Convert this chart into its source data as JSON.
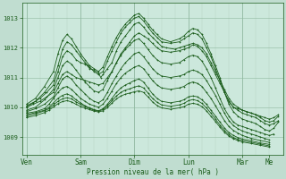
{
  "title": "",
  "xlabel": "Pression niveau de la mer( hPa )",
  "bg_color": "#c0ddd0",
  "plot_bg_color": "#cce8dc",
  "line_color": "#1a5c1a",
  "grid_color_major": "#90b8a0",
  "grid_color_minor": "#b0d0bc",
  "yticks": [
    1009,
    1010,
    1011,
    1012,
    1013
  ],
  "ylim": [
    1008.4,
    1013.5
  ],
  "xtick_labels": [
    "Ven",
    "Sam",
    "Dim",
    "Lun",
    "Mar",
    "Me"
  ],
  "xtick_positions": [
    0,
    24,
    48,
    72,
    96,
    108
  ],
  "xlim": [
    -2,
    114
  ],
  "figsize": [
    3.2,
    2.0
  ],
  "dpi": 100,
  "series": [
    [
      0,
      1010.0,
      3,
      1010.15,
      6,
      1010.3,
      9,
      1010.5,
      12,
      1010.75,
      14,
      1011.2,
      16,
      1011.7,
      18,
      1011.9,
      20,
      1011.8,
      22,
      1011.6,
      24,
      1011.5,
      26,
      1011.45,
      27,
      1011.4,
      28,
      1011.3,
      30,
      1011.25,
      32,
      1011.15,
      33,
      1011.0,
      34,
      1011.1,
      36,
      1011.3,
      38,
      1011.5,
      40,
      1011.9,
      42,
      1012.2,
      44,
      1012.4,
      46,
      1012.6,
      48,
      1012.8,
      50,
      1012.85,
      52,
      1012.7,
      54,
      1012.5,
      56,
      1012.35,
      58,
      1012.2,
      60,
      1012.05,
      62,
      1012.0,
      66,
      1011.95,
      68,
      1012.0,
      70,
      1012.05,
      72,
      1012.1,
      74,
      1012.15,
      76,
      1012.1,
      78,
      1012.0,
      80,
      1011.8,
      82,
      1011.5,
      84,
      1011.2,
      86,
      1010.9,
      88,
      1010.6,
      90,
      1010.3,
      92,
      1010.1,
      94,
      1010.0,
      96,
      1009.9,
      98,
      1009.85,
      100,
      1009.8,
      102,
      1009.75,
      104,
      1009.7,
      106,
      1009.65,
      108,
      1009.6,
      110,
      1009.65,
      112,
      1009.75
    ],
    [
      0,
      1010.0,
      3,
      1010.1,
      6,
      1010.2,
      9,
      1010.35,
      12,
      1010.5,
      14,
      1010.8,
      16,
      1011.1,
      18,
      1011.2,
      20,
      1011.1,
      22,
      1011.0,
      24,
      1010.95,
      26,
      1010.9,
      28,
      1010.85,
      30,
      1010.8,
      32,
      1010.75,
      34,
      1010.8,
      36,
      1011.0,
      38,
      1011.2,
      40,
      1011.5,
      42,
      1011.8,
      44,
      1012.0,
      46,
      1012.2,
      48,
      1012.4,
      50,
      1012.5,
      52,
      1012.4,
      54,
      1012.3,
      56,
      1012.15,
      58,
      1012.0,
      60,
      1011.9,
      64,
      1011.85,
      68,
      1011.9,
      70,
      1011.95,
      72,
      1012.0,
      74,
      1012.1,
      76,
      1012.05,
      78,
      1011.9,
      80,
      1011.7,
      82,
      1011.4,
      84,
      1011.1,
      86,
      1010.8,
      88,
      1010.5,
      90,
      1010.2,
      92,
      1010.0,
      94,
      1009.9,
      96,
      1009.8,
      98,
      1009.75,
      100,
      1009.7,
      102,
      1009.65,
      104,
      1009.55,
      106,
      1009.45,
      108,
      1009.4,
      110,
      1009.45,
      112,
      1009.55
    ],
    [
      0,
      1010.05,
      4,
      1010.2,
      8,
      1010.5,
      12,
      1010.9,
      14,
      1011.4,
      16,
      1011.95,
      18,
      1012.2,
      20,
      1012.1,
      22,
      1011.9,
      24,
      1011.7,
      26,
      1011.5,
      28,
      1011.35,
      30,
      1011.2,
      32,
      1011.1,
      34,
      1011.2,
      36,
      1011.55,
      38,
      1011.9,
      40,
      1012.2,
      42,
      1012.5,
      44,
      1012.7,
      46,
      1012.85,
      48,
      1013.0,
      50,
      1013.05,
      52,
      1012.9,
      54,
      1012.7,
      56,
      1012.5,
      58,
      1012.35,
      60,
      1012.2,
      64,
      1012.15,
      68,
      1012.2,
      70,
      1012.3,
      72,
      1012.4,
      74,
      1012.5,
      76,
      1012.45,
      78,
      1012.3,
      80,
      1012.0,
      82,
      1011.7,
      84,
      1011.3,
      86,
      1010.9,
      88,
      1010.5,
      90,
      1010.2,
      92,
      1010.0,
      94,
      1009.95,
      96,
      1009.9,
      98,
      1009.85,
      100,
      1009.8,
      102,
      1009.75,
      104,
      1009.65,
      106,
      1009.55,
      108,
      1009.5,
      110,
      1009.55,
      112,
      1009.7
    ],
    [
      0,
      1010.1,
      4,
      1010.3,
      8,
      1010.7,
      12,
      1011.2,
      14,
      1011.8,
      16,
      1012.25,
      18,
      1012.45,
      20,
      1012.3,
      22,
      1012.05,
      24,
      1011.8,
      26,
      1011.6,
      28,
      1011.4,
      30,
      1011.3,
      32,
      1011.2,
      34,
      1011.35,
      36,
      1011.7,
      38,
      1012.05,
      40,
      1012.35,
      42,
      1012.6,
      44,
      1012.8,
      46,
      1012.95,
      48,
      1013.1,
      50,
      1013.15,
      52,
      1013.0,
      54,
      1012.8,
      56,
      1012.6,
      58,
      1012.45,
      60,
      1012.3,
      64,
      1012.2,
      68,
      1012.3,
      70,
      1012.4,
      72,
      1012.55,
      74,
      1012.65,
      76,
      1012.6,
      78,
      1012.45,
      80,
      1012.15,
      82,
      1011.8,
      84,
      1011.4,
      86,
      1011.0,
      88,
      1010.5,
      90,
      1010.1,
      92,
      1009.85,
      94,
      1009.7,
      96,
      1009.6,
      98,
      1009.55,
      100,
      1009.5,
      102,
      1009.45,
      104,
      1009.35,
      106,
      1009.25,
      108,
      1009.2,
      110,
      1009.3,
      112,
      1009.5
    ],
    [
      0,
      1009.9,
      4,
      1010.0,
      8,
      1010.25,
      12,
      1010.6,
      14,
      1011.0,
      16,
      1011.4,
      18,
      1011.55,
      20,
      1011.45,
      22,
      1011.25,
      24,
      1011.05,
      26,
      1010.85,
      28,
      1010.7,
      30,
      1010.55,
      32,
      1010.5,
      34,
      1010.6,
      36,
      1010.9,
      38,
      1011.2,
      40,
      1011.5,
      42,
      1011.75,
      44,
      1011.95,
      46,
      1012.1,
      48,
      1012.25,
      50,
      1012.3,
      52,
      1012.15,
      54,
      1011.95,
      56,
      1011.75,
      58,
      1011.6,
      60,
      1011.5,
      64,
      1011.45,
      68,
      1011.5,
      70,
      1011.6,
      72,
      1011.7,
      74,
      1011.75,
      76,
      1011.7,
      78,
      1011.55,
      80,
      1011.3,
      82,
      1011.0,
      84,
      1010.65,
      86,
      1010.3,
      88,
      1009.95,
      90,
      1009.7,
      92,
      1009.5,
      94,
      1009.4,
      96,
      1009.35,
      98,
      1009.3,
      100,
      1009.25,
      102,
      1009.2,
      104,
      1009.15,
      106,
      1009.1,
      108,
      1009.05,
      110,
      1009.1
    ],
    [
      0,
      1009.85,
      4,
      1009.95,
      8,
      1010.1,
      12,
      1010.35,
      14,
      1010.65,
      16,
      1010.95,
      18,
      1011.05,
      20,
      1010.95,
      22,
      1010.75,
      24,
      1010.6,
      26,
      1010.45,
      28,
      1010.3,
      30,
      1010.2,
      32,
      1010.15,
      34,
      1010.25,
      36,
      1010.5,
      38,
      1010.8,
      40,
      1011.05,
      42,
      1011.3,
      44,
      1011.5,
      46,
      1011.65,
      48,
      1011.8,
      50,
      1011.85,
      52,
      1011.7,
      54,
      1011.5,
      56,
      1011.3,
      58,
      1011.15,
      60,
      1011.05,
      64,
      1011.0,
      68,
      1011.05,
      70,
      1011.1,
      72,
      1011.2,
      74,
      1011.25,
      76,
      1011.2,
      78,
      1011.1,
      80,
      1010.9,
      82,
      1010.65,
      84,
      1010.4,
      86,
      1010.1,
      88,
      1009.8,
      90,
      1009.55,
      92,
      1009.38,
      94,
      1009.28,
      96,
      1009.2,
      98,
      1009.15,
      100,
      1009.1,
      102,
      1009.05,
      104,
      1009.0,
      106,
      1008.95,
      108,
      1008.9
    ],
    [
      0,
      1009.8,
      4,
      1009.85,
      8,
      1009.95,
      10,
      1010.1,
      12,
      1010.3,
      14,
      1010.5,
      16,
      1010.65,
      18,
      1010.7,
      20,
      1010.6,
      22,
      1010.45,
      24,
      1010.3,
      26,
      1010.2,
      28,
      1010.1,
      30,
      1010.05,
      32,
      1010.0,
      34,
      1010.1,
      36,
      1010.3,
      38,
      1010.55,
      40,
      1010.8,
      42,
      1011.0,
      44,
      1011.15,
      46,
      1011.25,
      48,
      1011.35,
      50,
      1011.4,
      52,
      1011.3,
      54,
      1011.1,
      56,
      1010.9,
      58,
      1010.75,
      60,
      1010.65,
      64,
      1010.6,
      68,
      1010.65,
      70,
      1010.7,
      72,
      1010.8,
      74,
      1010.85,
      76,
      1010.8,
      78,
      1010.7,
      80,
      1010.5,
      82,
      1010.3,
      84,
      1010.05,
      86,
      1009.8,
      88,
      1009.55,
      90,
      1009.35,
      92,
      1009.22,
      94,
      1009.13,
      96,
      1009.05,
      98,
      1009.0,
      100,
      1008.95,
      104,
      1008.88,
      108,
      1008.82
    ],
    [
      0,
      1009.75,
      4,
      1009.82,
      8,
      1009.9,
      10,
      1010.0,
      12,
      1010.15,
      14,
      1010.3,
      16,
      1010.4,
      18,
      1010.45,
      20,
      1010.38,
      22,
      1010.25,
      24,
      1010.15,
      26,
      1010.05,
      28,
      1009.98,
      30,
      1009.92,
      32,
      1009.88,
      34,
      1009.95,
      36,
      1010.1,
      38,
      1010.3,
      40,
      1010.5,
      42,
      1010.65,
      44,
      1010.75,
      46,
      1010.82,
      48,
      1010.9,
      50,
      1010.95,
      52,
      1010.85,
      54,
      1010.65,
      56,
      1010.45,
      58,
      1010.3,
      60,
      1010.2,
      64,
      1010.15,
      68,
      1010.2,
      70,
      1010.25,
      72,
      1010.35,
      74,
      1010.38,
      76,
      1010.35,
      78,
      1010.25,
      80,
      1010.1,
      82,
      1009.9,
      84,
      1009.7,
      86,
      1009.5,
      88,
      1009.3,
      90,
      1009.15,
      92,
      1009.05,
      94,
      1008.98,
      96,
      1008.93,
      100,
      1008.87,
      104,
      1008.8,
      108,
      1008.75
    ],
    [
      0,
      1009.7,
      4,
      1009.78,
      8,
      1009.88,
      10,
      1009.95,
      12,
      1010.08,
      14,
      1010.2,
      16,
      1010.28,
      18,
      1010.32,
      20,
      1010.28,
      22,
      1010.18,
      24,
      1010.1,
      26,
      1010.02,
      28,
      1009.96,
      30,
      1009.9,
      32,
      1009.87,
      34,
      1009.92,
      36,
      1010.05,
      38,
      1010.22,
      40,
      1010.38,
      42,
      1010.5,
      44,
      1010.58,
      46,
      1010.62,
      48,
      1010.68,
      50,
      1010.72,
      52,
      1010.65,
      54,
      1010.48,
      56,
      1010.3,
      58,
      1010.17,
      60,
      1010.08,
      64,
      1010.03,
      68,
      1010.08,
      70,
      1010.13,
      72,
      1010.22,
      74,
      1010.26,
      76,
      1010.22,
      78,
      1010.13,
      80,
      1009.98,
      82,
      1009.8,
      84,
      1009.6,
      86,
      1009.4,
      88,
      1009.22,
      90,
      1009.08,
      92,
      1008.98,
      94,
      1008.92,
      96,
      1008.88,
      100,
      1008.82,
      104,
      1008.76,
      108,
      1008.7
    ],
    [
      0,
      1009.65,
      4,
      1009.72,
      8,
      1009.82,
      10,
      1009.9,
      12,
      1010.01,
      14,
      1010.12,
      16,
      1010.19,
      18,
      1010.22,
      20,
      1010.18,
      22,
      1010.1,
      24,
      1010.03,
      26,
      1009.97,
      28,
      1009.92,
      30,
      1009.87,
      32,
      1009.84,
      34,
      1009.88,
      36,
      1009.99,
      38,
      1010.14,
      40,
      1010.28,
      42,
      1010.38,
      44,
      1010.44,
      46,
      1010.48,
      48,
      1010.52,
      50,
      1010.55,
      52,
      1010.5,
      54,
      1010.35,
      56,
      1010.18,
      58,
      1010.06,
      60,
      1009.98,
      64,
      1009.93,
      68,
      1009.98,
      70,
      1010.02,
      72,
      1010.1,
      74,
      1010.13,
      76,
      1010.1,
      78,
      1010.02,
      80,
      1009.88,
      82,
      1009.7,
      84,
      1009.52,
      86,
      1009.33,
      88,
      1009.16,
      90,
      1009.03,
      92,
      1008.94,
      94,
      1008.88,
      96,
      1008.83,
      100,
      1008.78,
      104,
      1008.72,
      108,
      1008.66
    ]
  ]
}
